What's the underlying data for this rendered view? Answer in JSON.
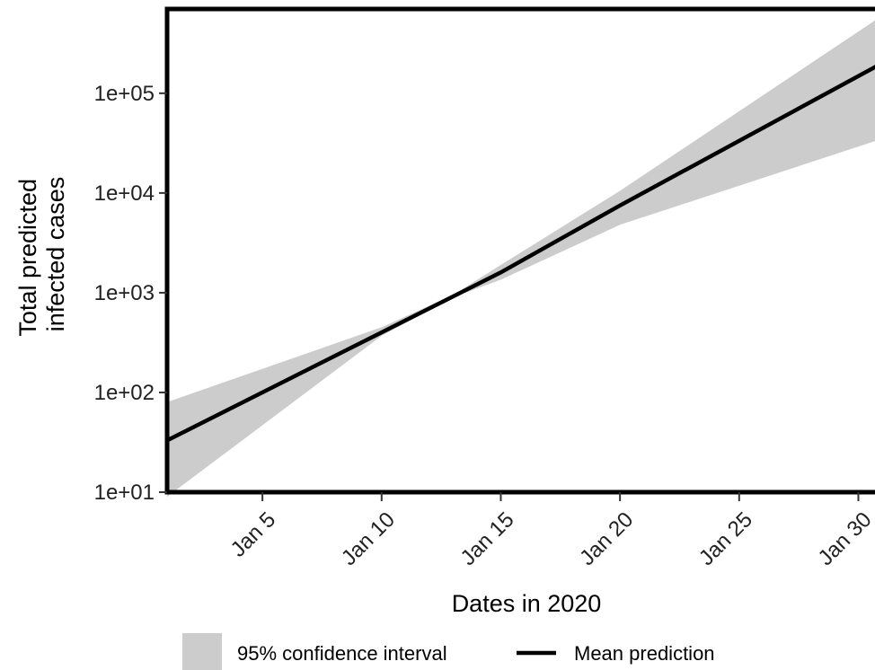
{
  "chart_data": {
    "type": "line",
    "title": "",
    "xlabel": "Dates in 2020",
    "ylabel": [
      "Total predicted",
      "infected cases"
    ],
    "y_scale": "log10",
    "ylim": [
      10,
      700000
    ],
    "xlim": [
      "2020-01-01",
      "2020-01-31"
    ],
    "x_ticks": [
      {
        "date": "2020-01-05",
        "label": "Jan 5"
      },
      {
        "date": "2020-01-10",
        "label": "Jan 10"
      },
      {
        "date": "2020-01-15",
        "label": "Jan 15"
      },
      {
        "date": "2020-01-20",
        "label": "Jan 20"
      },
      {
        "date": "2020-01-25",
        "label": "Jan 25"
      },
      {
        "date": "2020-01-30",
        "label": "Jan 30"
      }
    ],
    "y_ticks": [
      {
        "value": 10,
        "label": "1e+01"
      },
      {
        "value": 100,
        "label": "1e+02"
      },
      {
        "value": 1000,
        "label": "1e+03"
      },
      {
        "value": 10000,
        "label": "1e+04"
      },
      {
        "value": 100000,
        "label": "1e+05"
      }
    ],
    "grid": false,
    "legend_position": "bottom",
    "series": [
      {
        "name": "Mean prediction",
        "kind": "line",
        "color": "#000000",
        "x": [
          "2020-01-01",
          "2020-01-10",
          "2020-01-15",
          "2020-01-20",
          "2020-01-31"
        ],
        "y": [
          33,
          400,
          1600,
          7500,
          200000
        ]
      },
      {
        "name": "95% confidence interval",
        "kind": "band",
        "color": "#cccccc",
        "x": [
          "2020-01-01",
          "2020-01-10",
          "2020-01-13",
          "2020-01-15",
          "2020-01-20",
          "2020-01-31"
        ],
        "lower": [
          9,
          370,
          900,
          1350,
          4800,
          35000
        ],
        "upper": [
          80,
          450,
          950,
          1900,
          10500,
          600000
        ]
      }
    ]
  }
}
